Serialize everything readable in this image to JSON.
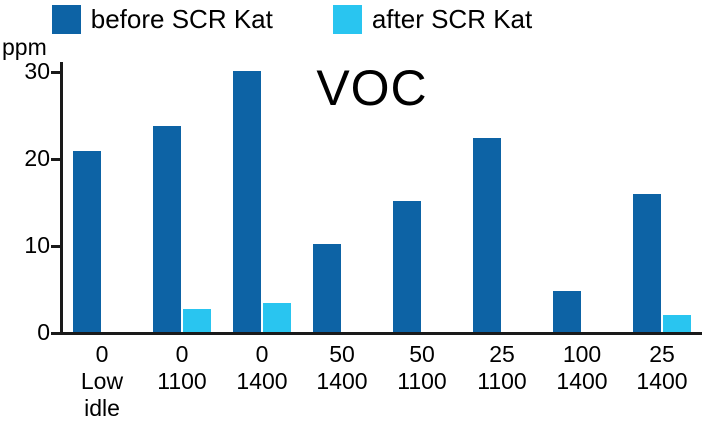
{
  "chart_data": {
    "type": "bar",
    "title": "VOC",
    "ylabel": "ppm",
    "xlabel": "",
    "ylim": [
      0,
      30
    ],
    "yticks": [
      0,
      10,
      20,
      30
    ],
    "grid": false,
    "legend_position": "top",
    "categories": [
      {
        "line1": "0",
        "line2": "Low",
        "line3": "idle"
      },
      {
        "line1": "0",
        "line2": "1100",
        "line3": ""
      },
      {
        "line1": "0",
        "line2": "1400",
        "line3": ""
      },
      {
        "line1": "50",
        "line2": "1400",
        "line3": ""
      },
      {
        "line1": "50",
        "line2": "1100",
        "line3": ""
      },
      {
        "line1": "25",
        "line2": "1100",
        "line3": ""
      },
      {
        "line1": "100",
        "line2": "1400",
        "line3": ""
      },
      {
        "line1": "25",
        "line2": "1400",
        "line3": ""
      }
    ],
    "series": [
      {
        "name": "before SCR Kat",
        "color": "#0d63a5",
        "values": [
          20.8,
          23.7,
          30,
          10.1,
          15.1,
          22.3,
          4.7,
          15.9
        ]
      },
      {
        "name": "after SCR Kat",
        "color": "#29c5f0",
        "values": [
          0,
          2.6,
          3.3,
          0,
          0,
          0,
          0,
          2.0
        ]
      }
    ]
  }
}
